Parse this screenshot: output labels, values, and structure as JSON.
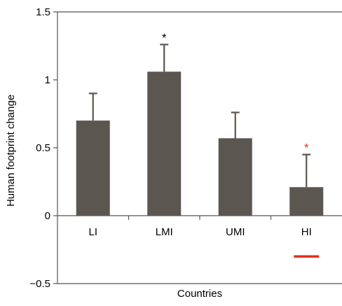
{
  "chart_data": {
    "type": "bar",
    "categories": [
      "LI",
      "LMI",
      "UMI",
      "HI"
    ],
    "values": [
      0.7,
      1.06,
      0.57,
      0.21
    ],
    "error": [
      0.2,
      0.2,
      0.19,
      0.24
    ],
    "significance": [
      "",
      "*",
      "",
      "*"
    ],
    "significance_colors": [
      "#000000",
      "#000000",
      "#000000",
      "#e0301e"
    ],
    "xlabel": "Countries",
    "ylabel": "Human footprint change",
    "ylim": [
      -0.5,
      1.5
    ],
    "yticks": [
      "−0.5",
      "0",
      "0.5",
      "1",
      "1.5"
    ],
    "ytick_values": [
      -0.5,
      0,
      0.5,
      1,
      1.5
    ],
    "bar_color": "#5c5651",
    "hi_marker": {
      "category": "HI",
      "value": -0.3,
      "color": "#e0301e"
    }
  }
}
